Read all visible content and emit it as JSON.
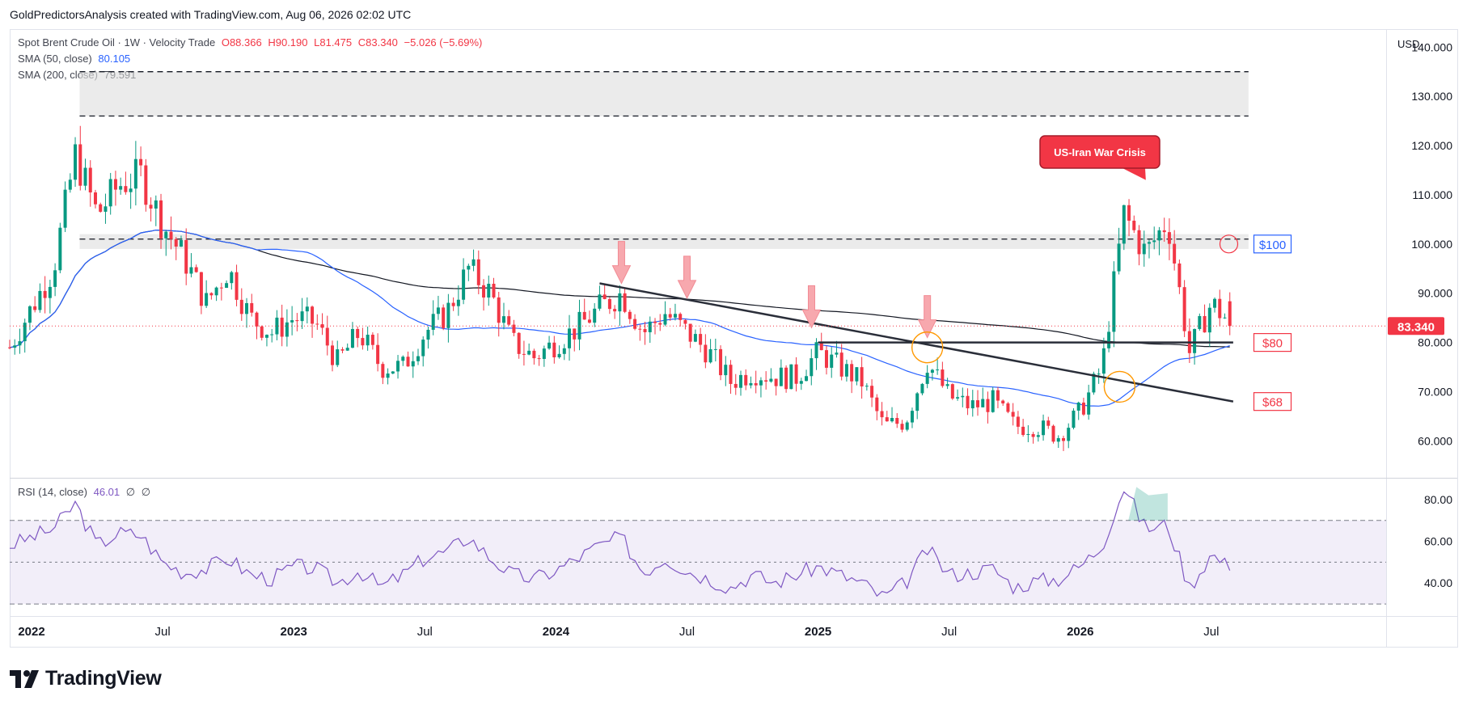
{
  "attribution": "GoldPredictorsAnalysis created with TradingView.com, Aug 06, 2026 02:02 UTC",
  "brand": "TradingView",
  "currency": "USD",
  "header": {
    "symbol": "Spot Brent Crude Oil · 1W · Velocity Trade",
    "open": "O88.366",
    "high": "H90.190",
    "low": "L81.475",
    "close": "C83.340",
    "change": "−5.026 (−5.69%)"
  },
  "sma50": {
    "label": "SMA (50, close)",
    "value": "80.105"
  },
  "sma200": {
    "label": "SMA (200, close)",
    "value": "79.591"
  },
  "rsi": {
    "label": "RSI (14, close)",
    "value": "46.01",
    "extra1": "∅",
    "extra2": "∅"
  },
  "price_label": "83.340",
  "annotations": {
    "crisis": "US-Iran War Crisis",
    "level100": "$100",
    "level80": "$80",
    "level68": "$68"
  },
  "colors": {
    "up": "#089981",
    "down": "#f23645",
    "sma50": "#2962ff",
    "sma200": "#131722",
    "rsi": "#7e57c2",
    "zone": "#e0e0e0",
    "arrow": "#f7a8ae",
    "circle": "#ff9800"
  },
  "chart_data": [
    {
      "type": "candlestick",
      "title": "Spot Brent Crude Oil · 1W · Velocity Trade",
      "ylabel": "USD",
      "ylim": [
        53,
        143
      ],
      "x_ticks": [
        "2022",
        "Jul",
        "2023",
        "Jul",
        "2024",
        "Jul",
        "2025",
        "Jul",
        "2026",
        "Jul"
      ],
      "y_ticks": [
        "60.000",
        "70.000",
        "80.000",
        "90.000",
        "100.000",
        "110.000",
        "120.000",
        "130.000",
        "140.000"
      ],
      "resistance_zones": [
        [
          126,
          135
        ],
        [
          99,
          102
        ]
      ],
      "horizontal_levels": [
        135,
        126,
        101,
        80
      ],
      "trendlines": [
        [
          [
            "2024-03",
            92
          ],
          [
            "2026-08",
            68
          ]
        ],
        [
          [
            "2025-01",
            80
          ],
          [
            "2026-08",
            80
          ]
        ]
      ],
      "price_path": [
        [
          "2021-12",
          79
        ],
        [
          "2022-01",
          87
        ],
        [
          "2022-02",
          95
        ],
        [
          "2022-03",
          118
        ],
        [
          "2022-04",
          106
        ],
        [
          "2022-05",
          112
        ],
        [
          "2022-06",
          114
        ],
        [
          "2022-07",
          104
        ],
        [
          "2022-08",
          97
        ],
        [
          "2022-09",
          88
        ],
        [
          "2022-10",
          95
        ],
        [
          "2022-11",
          85
        ],
        [
          "2022-12",
          82
        ],
        [
          "2023-01",
          85
        ],
        [
          "2023-02",
          84
        ],
        [
          "2023-03",
          76
        ],
        [
          "2023-04",
          82
        ],
        [
          "2023-05",
          75
        ],
        [
          "2023-06",
          75
        ],
        [
          "2023-07",
          82
        ],
        [
          "2023-08",
          86
        ],
        [
          "2023-09",
          95
        ],
        [
          "2023-10",
          90
        ],
        [
          "2023-11",
          80
        ],
        [
          "2023-12",
          77
        ],
        [
          "2024-01",
          80
        ],
        [
          "2024-02",
          83
        ],
        [
          "2024-03",
          87
        ],
        [
          "2024-04",
          90
        ],
        [
          "2024-05",
          82
        ],
        [
          "2024-06",
          86
        ],
        [
          "2024-07",
          82
        ],
        [
          "2024-08",
          78
        ],
        [
          "2024-09",
          72
        ],
        [
          "2024-10",
          74
        ],
        [
          "2024-11",
          73
        ],
        [
          "2024-12",
          73
        ],
        [
          "2025-01",
          78
        ],
        [
          "2025-02",
          75
        ],
        [
          "2025-03",
          72
        ],
        [
          "2025-04",
          63
        ],
        [
          "2025-05",
          64
        ],
        [
          "2025-06",
          76
        ],
        [
          "2025-07",
          69
        ],
        [
          "2025-08",
          67
        ],
        [
          "2025-09",
          68
        ],
        [
          "2025-10",
          63
        ],
        [
          "2025-11",
          63
        ],
        [
          "2025-12",
          61
        ],
        [
          "2026-01",
          66
        ],
        [
          "2026-02",
          75
        ],
        [
          "2026-03",
          106
        ],
        [
          "2026-04",
          98
        ],
        [
          "2026-05",
          105
        ],
        [
          "2026-06",
          78
        ],
        [
          "2026-07",
          88
        ],
        [
          "2026-08",
          83.34
        ]
      ]
    },
    {
      "type": "line",
      "title": "RSI (14, close)",
      "ylim": [
        25,
        90
      ],
      "bands": [
        30,
        50,
        70
      ],
      "y_ticks": [
        "40.00",
        "60.00",
        "80.00"
      ],
      "values_monthly": [
        58,
        62,
        66,
        78,
        58,
        64,
        63,
        50,
        45,
        47,
        52,
        44,
        42,
        48,
        47,
        40,
        46,
        38,
        44,
        52,
        55,
        62,
        52,
        44,
        42,
        46,
        52,
        58,
        62,
        45,
        52,
        46,
        42,
        38,
        44,
        40,
        44,
        48,
        44,
        40,
        33,
        40,
        56,
        44,
        45,
        47,
        38,
        41,
        42,
        48,
        58,
        86,
        66,
        68,
        38,
        54,
        46
      ]
    }
  ]
}
